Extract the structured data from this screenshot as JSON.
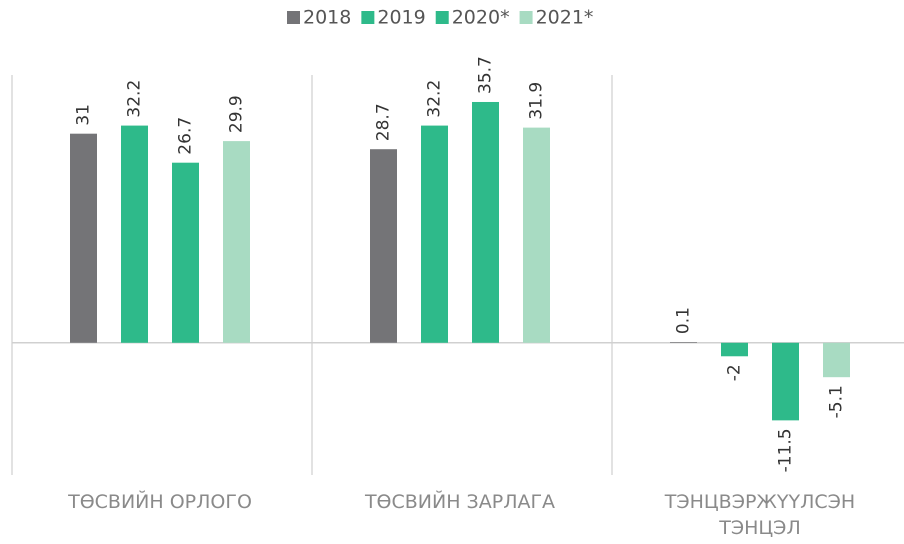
{
  "chart_data": {
    "type": "bar",
    "categories": [
      "ТӨСВИЙН ОРЛОГО",
      "ТӨСВИЙН ЗАРЛАГА",
      "ТЭНЦВЭРЖҮҮЛСЭН ТЭНЦЭЛ"
    ],
    "series": [
      {
        "name": "2018",
        "color": "#747477",
        "values": [
          31,
          28.7,
          0.1
        ]
      },
      {
        "name": "2019",
        "color": "#2eba8a",
        "values": [
          32.2,
          32.2,
          -2
        ]
      },
      {
        "name": "2020*",
        "color": "#2eba8a",
        "values": [
          26.7,
          35.7,
          -11.5
        ]
      },
      {
        "name": "2021*",
        "color": "#a8dbc2",
        "values": [
          29.9,
          31.9,
          -5.1
        ]
      }
    ],
    "ylim": [
      -19.6,
      39.7
    ],
    "legend": "top"
  }
}
